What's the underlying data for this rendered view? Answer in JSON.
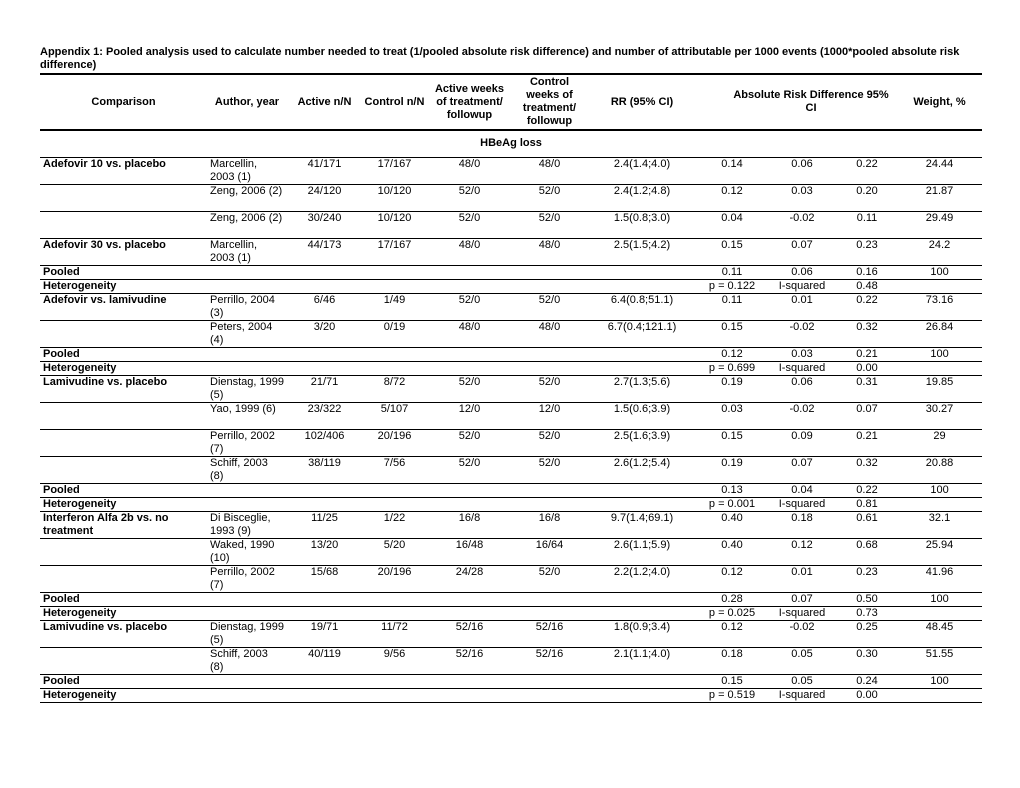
{
  "title": "Appendix 1: Pooled analysis used to calculate number needed to treat (1/pooled absolute risk difference) and number of attributable per 1000 events (1000*pooled absolute risk difference)",
  "table": {
    "headers": {
      "comparison": "Comparison",
      "author": "Author, year",
      "active": "Active n/N",
      "control": "Control n/N",
      "active_weeks": "Active weeks of treatment/ followup",
      "control_weeks": "Control weeks of treatment/ followup",
      "rr": "RR (95% CI)",
      "ard": "Absolute Risk Difference 95% CI",
      "weight": "Weight, %"
    },
    "section": "HBeAg loss",
    "rows": [
      {
        "comparison": "Adefovir 10 vs. placebo",
        "author": "Marcellin, 2003 (1)",
        "active": "41/171",
        "control": "17/167",
        "active_weeks": "48/0",
        "control_weeks": "48/0",
        "rr": "2.4(1.4;4.0)",
        "ard": "0.14",
        "lo": "0.06",
        "hi": "0.22",
        "weight": "24.44"
      },
      {
        "author": "Zeng, 2006 (2)",
        "active": "24/120",
        "control": "10/120",
        "active_weeks": "52/0",
        "control_weeks": "52/0",
        "rr": "2.4(1.2;4.8)",
        "ard": "0.12",
        "lo": "0.03",
        "hi": "0.20",
        "weight": "21.87"
      },
      {
        "author": "Zeng, 2006 (2)",
        "active": "30/240",
        "control": "10/120",
        "active_weeks": "52/0",
        "control_weeks": "52/0",
        "rr": "1.5(0.8;3.0)",
        "ard": "0.04",
        "lo": "-0.02",
        "hi": "0.11",
        "weight": "29.49"
      },
      {
        "comparison": "Adefovir 30 vs. placebo",
        "author": "Marcellin, 2003 (1)",
        "active": "44/173",
        "control": "17/167",
        "active_weeks": "48/0",
        "control_weeks": "48/0",
        "rr": "2.5(1.5;4.2)",
        "ard": "0.15",
        "lo": "0.07",
        "hi": "0.23",
        "weight": "24.2"
      },
      {
        "comparison": "Pooled",
        "ard": "0.11",
        "lo": "0.06",
        "hi": "0.16",
        "weight": "100"
      },
      {
        "comparison": "Heterogeneity",
        "ard": "p = 0.122",
        "lo": "I-squared",
        "hi": "0.48"
      },
      {
        "comparison": "Adefovir vs. lamivudine",
        "author": "Perrillo, 2004 (3)",
        "active": "6/46",
        "control": "1/49",
        "active_weeks": "52/0",
        "control_weeks": "52/0",
        "rr": "6.4(0.8;51.1)",
        "ard": "0.11",
        "lo": "0.01",
        "hi": "0.22",
        "weight": "73.16"
      },
      {
        "author": "Peters, 2004 (4)",
        "active": "3/20",
        "control": "0/19",
        "active_weeks": "48/0",
        "control_weeks": "48/0",
        "rr": "6.7(0.4;121.1)",
        "ard": "0.15",
        "lo": "-0.02",
        "hi": "0.32",
        "weight": "26.84"
      },
      {
        "comparison": "Pooled",
        "ard": "0.12",
        "lo": "0.03",
        "hi": "0.21",
        "weight": "100"
      },
      {
        "comparison": "Heterogeneity",
        "ard": "p = 0.699",
        "lo": "I-squared",
        "hi": "0.00"
      },
      {
        "comparison": "Lamivudine vs. placebo",
        "author": "Dienstag, 1999 (5)",
        "active": "21/71",
        "control": "8/72",
        "active_weeks": "52/0",
        "control_weeks": "52/0",
        "rr": "2.7(1.3;5.6)",
        "ard": "0.19",
        "lo": "0.06",
        "hi": "0.31",
        "weight": "19.85"
      },
      {
        "author": "Yao, 1999 (6)",
        "active": "23/322",
        "control": "5/107",
        "active_weeks": "12/0",
        "control_weeks": "12/0",
        "rr": "1.5(0.6;3.9)",
        "ard": "0.03",
        "lo": "-0.02",
        "hi": "0.07",
        "weight": "30.27"
      },
      {
        "author": "Perrillo, 2002 (7)",
        "active": "102/406",
        "control": "20/196",
        "active_weeks": "52/0",
        "control_weeks": "52/0",
        "rr": "2.5(1.6;3.9)",
        "ard": "0.15",
        "lo": "0.09",
        "hi": "0.21",
        "weight": "29"
      },
      {
        "author": "Schiff, 2003 (8)",
        "active": "38/119",
        "control": "7/56",
        "active_weeks": "52/0",
        "control_weeks": "52/0",
        "rr": "2.6(1.2;5.4)",
        "ard": "0.19",
        "lo": "0.07",
        "hi": "0.32",
        "weight": "20.88"
      },
      {
        "comparison": "Pooled",
        "ard": "0.13",
        "lo": "0.04",
        "hi": "0.22",
        "weight": "100"
      },
      {
        "comparison": "Heterogeneity",
        "ard": "p = 0.001",
        "lo": "I-squared",
        "hi": "0.81"
      },
      {
        "comparison": "Interferon Alfa 2b vs. no treatment",
        "author": "Di Bisceglie, 1993 (9)",
        "active": "11/25",
        "control": "1/22",
        "active_weeks": "16/8",
        "control_weeks": "16/8",
        "rr": "9.7(1.4;69.1)",
        "ard": "0.40",
        "lo": "0.18",
        "hi": "0.61",
        "weight": "32.1"
      },
      {
        "author": "Waked, 1990 (10)",
        "active": "13/20",
        "control": "5/20",
        "active_weeks": "16/48",
        "control_weeks": "16/64",
        "rr": "2.6(1.1;5.9)",
        "ard": "0.40",
        "lo": "0.12",
        "hi": "0.68",
        "weight": "25.94"
      },
      {
        "author": "Perrillo, 2002 (7)",
        "active": "15/68",
        "control": "20/196",
        "active_weeks": "24/28",
        "control_weeks": "52/0",
        "rr": "2.2(1.2;4.0)",
        "ard": "0.12",
        "lo": "0.01",
        "hi": "0.23",
        "weight": "41.96"
      },
      {
        "comparison": "Pooled",
        "ard": "0.28",
        "lo": "0.07",
        "hi": "0.50",
        "weight": "100"
      },
      {
        "comparison": "Heterogeneity",
        "ard": "p = 0.025",
        "lo": "I-squared",
        "hi": "0.73"
      },
      {
        "comparison": "Lamivudine vs. placebo",
        "author": "Dienstag, 1999 (5)",
        "active": "19/71",
        "control": "11/72",
        "active_weeks": "52/16",
        "control_weeks": "52/16",
        "rr": "1.8(0.9;3.4)",
        "ard": "0.12",
        "lo": "-0.02",
        "hi": "0.25",
        "weight": "48.45"
      },
      {
        "author": "Schiff, 2003 (8)",
        "active": "40/119",
        "control": "9/56",
        "active_weeks": "52/16",
        "control_weeks": "52/16",
        "rr": "2.1(1.1;4.0)",
        "ard": "0.18",
        "lo": "0.05",
        "hi": "0.30",
        "weight": "51.55"
      },
      {
        "comparison": "Pooled",
        "ard": "0.15",
        "lo": "0.05",
        "hi": "0.24",
        "weight": "100"
      },
      {
        "comparison": "Heterogeneity",
        "ard": "p = 0.519",
        "lo": "I-squared",
        "hi": "0.00"
      }
    ]
  }
}
